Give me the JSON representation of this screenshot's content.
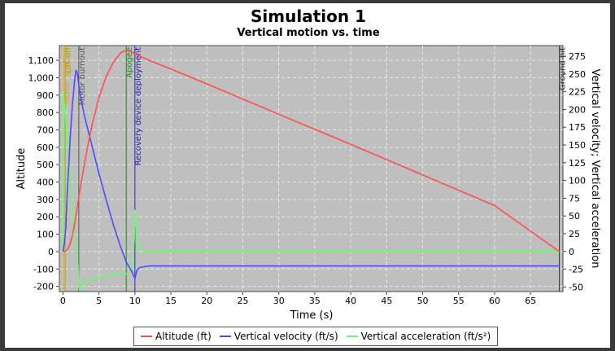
{
  "chart_data": {
    "type": "line",
    "title": "Simulation 1",
    "subtitle": "Vertical motion vs. time",
    "xlabel": "Time (s)",
    "ylabel": "Altitude",
    "y2label": "Vertical velocity; Vertical acceleration",
    "xlim": [
      -0.5,
      69.5
    ],
    "ylim": [
      -230,
      1185
    ],
    "y2lim": [
      -56.5,
      290
    ],
    "xticks": [
      0,
      5,
      10,
      15,
      20,
      25,
      30,
      35,
      40,
      45,
      50,
      55,
      60,
      65
    ],
    "yticks": [
      -200,
      -100,
      0,
      100,
      200,
      300,
      400,
      500,
      600,
      700,
      800,
      900,
      1000,
      1100
    ],
    "yticklabels": [
      "-200",
      "-100",
      "0",
      "100",
      "200",
      "300",
      "400",
      "500",
      "600",
      "700",
      "800",
      "900",
      "1,000",
      "1,100"
    ],
    "y2ticks": [
      -50,
      -25,
      0,
      25,
      50,
      75,
      100,
      125,
      150,
      175,
      200,
      225,
      250,
      275
    ],
    "grid": true,
    "legend_position": "bottom",
    "series": [
      {
        "name": "Altitude (ft)",
        "color": "#ff4d4d",
        "axis": "left",
        "x": [
          0,
          0.3,
          0.6,
          1.0,
          1.5,
          2.0,
          2.5,
          3.0,
          3.5,
          4.0,
          5.0,
          6.0,
          7.0,
          8.0,
          8.5,
          8.8,
          9.5,
          10.0,
          11.0,
          12.0,
          15.0,
          20.0,
          30.0,
          40.0,
          50.0,
          60.0,
          69.0
        ],
        "values": [
          0,
          2,
          10,
          45,
          130,
          260,
          390,
          510,
          620,
          720,
          885,
          1005,
          1090,
          1142,
          1155,
          1158,
          1150,
          1138,
          1118,
          1100,
          1050,
          965,
          790,
          617,
          441,
          265,
          0
        ]
      },
      {
        "name": "Vertical velocity (ft/s)",
        "color": "#4d4dff",
        "axis": "right",
        "x": [
          0,
          0.2,
          0.4,
          0.6,
          0.8,
          1.0,
          1.3,
          1.6,
          1.8,
          2.0,
          2.3,
          3.0,
          4.0,
          5.0,
          6.0,
          7.0,
          8.0,
          8.8,
          9.5,
          10.0,
          10.3,
          10.6,
          11.0,
          11.5,
          12.0,
          13.0,
          15.0,
          20.0,
          30.0,
          40.0,
          50.0,
          60.0,
          69.0
        ],
        "values": [
          0,
          12,
          35,
          85,
          120,
          160,
          205,
          240,
          255,
          252,
          225,
          190,
          150,
          110,
          73,
          38,
          7,
          -15,
          -27,
          -38,
          -26,
          -23,
          -22,
          -21,
          -20.5,
          -20.5,
          -20.5,
          -20.5,
          -20.5,
          -20.5,
          -20.5,
          -20.5,
          -20.5
        ]
      },
      {
        "name": "Vertical acceleration (ft/s²)",
        "color": "#66ff66",
        "axis": "right",
        "x": [
          0,
          0.05,
          0.2,
          0.4,
          0.7,
          1.0,
          1.3,
          1.6,
          2.0,
          2.2,
          2.3,
          2.6,
          3.0,
          4.0,
          5.0,
          6.0,
          7.0,
          8.0,
          9.0,
          9.5,
          9.9,
          10.0,
          10.1,
          10.3,
          10.6,
          11.0,
          11.5,
          12.0,
          15.0,
          30.0,
          50.0,
          69.0
        ],
        "values": [
          0,
          225,
          205,
          185,
          155,
          105,
          55,
          25,
          0,
          -45,
          -55,
          -47,
          -44,
          -39,
          -36,
          -34,
          -32,
          -31,
          -31,
          -30.5,
          15,
          58,
          40,
          20,
          5,
          1,
          0,
          0,
          0,
          0,
          0,
          0
        ]
      }
    ],
    "events": [
      {
        "label": "Motor ignition",
        "x": 0.05,
        "color": "#ff9900"
      },
      {
        "label": "Lift-off",
        "x": 0.3,
        "color": "#aaaa00"
      },
      {
        "label": "Motor burnout",
        "x": 2.2,
        "color": "#555555"
      },
      {
        "label": "Apogee",
        "x": 8.8,
        "color": "#228822"
      },
      {
        "label": "Recovery device deployment",
        "x": 10.0,
        "color": "#2222aa"
      },
      {
        "label": "Ground hit",
        "x": 69.0,
        "color": "#333333"
      }
    ]
  }
}
